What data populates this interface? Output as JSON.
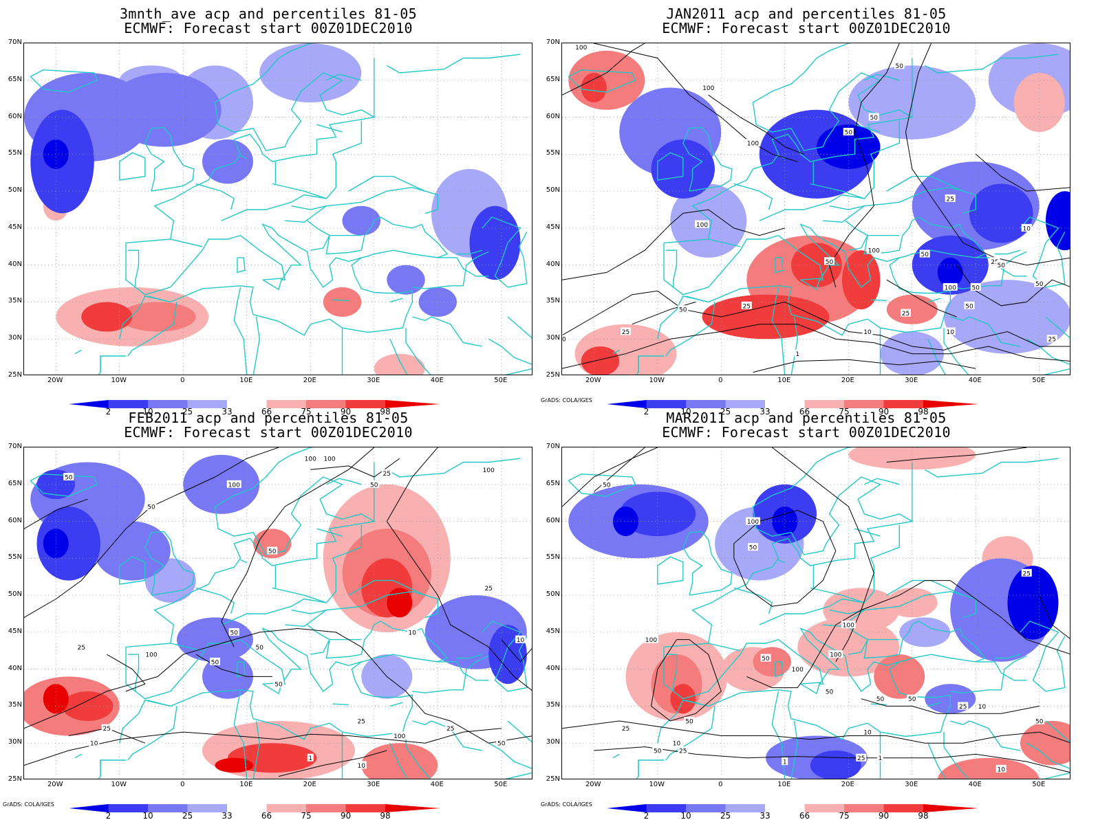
{
  "colorbar": {
    "labels": [
      "2",
      "10",
      "25",
      "33",
      "66",
      "75",
      "90",
      "98"
    ],
    "blue_colors": [
      "#0000e8",
      "#3c3cf0",
      "#7878f4",
      "#a8a8f8"
    ],
    "red_colors": [
      "#f8b0b0",
      "#f47c7c",
      "#f03c3c",
      "#e80000"
    ]
  },
  "axes": {
    "lat_labels": [
      "70N",
      "65N",
      "60N",
      "55N",
      "50N",
      "45N",
      "40N",
      "35N",
      "30N",
      "25N"
    ],
    "lon_labels": [
      "20W",
      "10W",
      "0",
      "10E",
      "20E",
      "30E",
      "40E",
      "50E"
    ]
  },
  "coastline_color": "#20c8c8",
  "credit": "GrADS: COLA/IGES",
  "panels": [
    {
      "title_line1": "3mnth_ave acp and percentiles 81-05",
      "title_line2": "ECMWF: Forecast start 00Z01DEC2010",
      "show_credit": false,
      "contour_labels": []
    },
    {
      "title_line1": "JAN2011 acp and percentiles 81-05",
      "title_line2": "ECMWF: Forecast start 00Z01DEC2010",
      "show_credit": true,
      "contour_labels": [
        "100",
        "50",
        "100",
        "50",
        "50",
        "100",
        "25",
        "100",
        "10",
        "50",
        "100",
        "50",
        "50",
        "25",
        "50",
        "50",
        "25",
        "10",
        "10",
        "1",
        "25",
        "50",
        "25",
        "50",
        "25",
        "50",
        "100"
      ]
    },
    {
      "title_line1": "FEB2011 acp and percentiles 81-05",
      "title_line2": "ECMWF: Forecast start 00Z01DEC2010",
      "show_credit": true,
      "contour_labels": [
        "100",
        "100",
        "50",
        "25",
        "100",
        "100",
        "50",
        "50",
        "25",
        "50",
        "50",
        "50",
        "100",
        "50",
        "25",
        "50",
        "10",
        "25",
        "10",
        "1",
        "10",
        "25",
        "100",
        "25",
        "50",
        "10"
      ]
    },
    {
      "title_line1": "MAR2011 acp and percentiles 81-05",
      "title_line2": "ECMWF: Forecast start 00Z01DEC2010",
      "show_credit": true,
      "contour_labels": [
        "50",
        "100",
        "100",
        "100",
        "50",
        "25",
        "50",
        "50",
        "100",
        "50",
        "50",
        "100",
        "50",
        "50",
        "25",
        "25",
        "10",
        "1",
        "25",
        "10",
        "50",
        "25",
        "10",
        "1",
        "10"
      ]
    }
  ]
}
